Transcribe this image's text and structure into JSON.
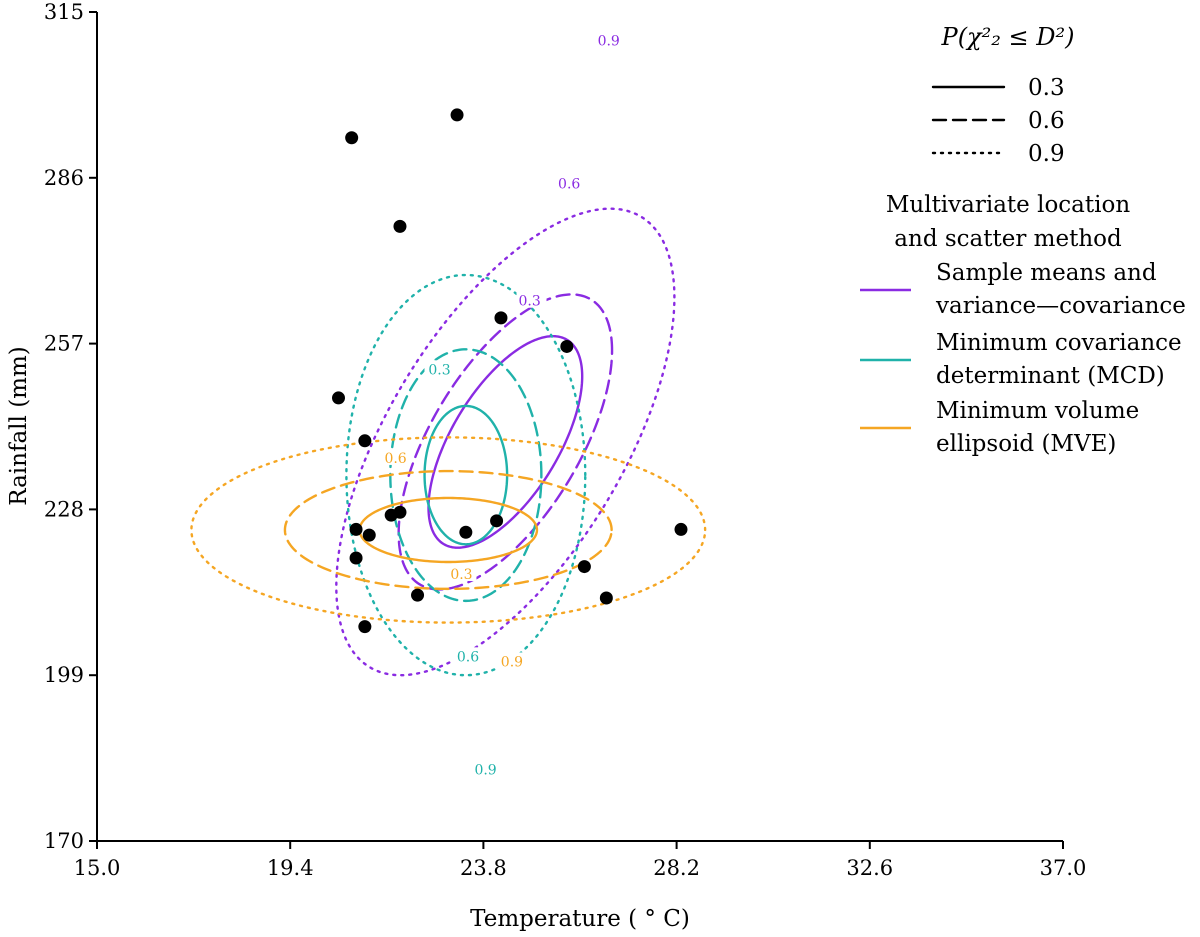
{
  "chart_data": {
    "type": "scatter",
    "xlabel": "Temperature ( ° C)",
    "ylabel": "Rainfall (mm)",
    "xlim": [
      15.0,
      37.0
    ],
    "ylim": [
      170,
      315
    ],
    "xticks": [
      15.0,
      19.4,
      23.8,
      28.2,
      32.6,
      37.0
    ],
    "xtick_labels": [
      "15.0",
      "19.4",
      "23.8",
      "28.2",
      "32.6",
      "37.0"
    ],
    "yticks": [
      170,
      199,
      228,
      257,
      286,
      315
    ],
    "ytick_labels": [
      "170",
      "199",
      "228",
      "257",
      "286",
      "315"
    ],
    "grid": false,
    "points": [
      {
        "x": 20.8,
        "y": 293.0
      },
      {
        "x": 23.2,
        "y": 297.0
      },
      {
        "x": 21.9,
        "y": 277.5
      },
      {
        "x": 24.2,
        "y": 261.5
      },
      {
        "x": 25.7,
        "y": 256.5
      },
      {
        "x": 20.5,
        "y": 247.5
      },
      {
        "x": 21.1,
        "y": 240.0
      },
      {
        "x": 21.7,
        "y": 227.0
      },
      {
        "x": 21.9,
        "y": 227.5
      },
      {
        "x": 24.1,
        "y": 226.0
      },
      {
        "x": 23.4,
        "y": 224.0
      },
      {
        "x": 20.9,
        "y": 224.5
      },
      {
        "x": 21.2,
        "y": 223.5
      },
      {
        "x": 28.3,
        "y": 224.5
      },
      {
        "x": 20.9,
        "y": 219.5
      },
      {
        "x": 26.1,
        "y": 218.0
      },
      {
        "x": 22.3,
        "y": 213.0
      },
      {
        "x": 26.6,
        "y": 212.5
      },
      {
        "x": 21.1,
        "y": 207.5
      }
    ],
    "methods": [
      {
        "name": "Sample means and variance—covariance",
        "color": "#8a2be2",
        "contours": [
          {
            "level": "0.3",
            "center": [
              24.3,
              239.8
            ],
            "sx": 1.75,
            "sy": 18.5,
            "rho": 0.62,
            "label_at": [
              24.6,
              264.5
            ],
            "label_anchor": "start"
          },
          {
            "level": "0.6",
            "center": [
              24.3,
              239.8
            ],
            "sx": 2.43,
            "sy": 25.8,
            "rho": 0.62,
            "label_at": [
              25.5,
              285.0
            ],
            "label_anchor": "start"
          },
          {
            "level": "0.9",
            "center": [
              24.3,
              239.8
            ],
            "sx": 3.85,
            "sy": 40.8,
            "rho": 0.62,
            "label_at": [
              26.4,
              310.0
            ],
            "label_anchor": "start"
          }
        ]
      },
      {
        "name": "Minimum covariance determinant (MCD)",
        "color": "#20b2aa",
        "contours": [
          {
            "level": "0.3",
            "center": [
              23.4,
              234.0
            ],
            "sx": 0.94,
            "sy": 12.1,
            "rho": 0.0,
            "label_at": [
              22.8,
              252.5
            ],
            "label_anchor": "middle"
          },
          {
            "level": "0.6",
            "center": [
              23.4,
              234.0
            ],
            "sx": 1.72,
            "sy": 22.0,
            "rho": 0.0,
            "label_at": [
              23.45,
              202.3
            ],
            "label_anchor": "middle"
          },
          {
            "level": "0.9",
            "center": [
              23.4,
              234.0
            ],
            "sx": 2.72,
            "sy": 35.0,
            "rho": 0.0,
            "label_at": [
              23.85,
              182.5
            ],
            "label_anchor": "middle"
          }
        ]
      },
      {
        "name": "Minimum volume ellipsoid (MVE)",
        "color": "#f5a623",
        "contours": [
          {
            "level": "0.3",
            "center": [
              23.0,
              224.4
            ],
            "sx": 2.02,
            "sy": 5.6,
            "rho": 0.0,
            "label_at": [
              23.3,
              216.7
            ],
            "label_anchor": "middle"
          },
          {
            "level": "0.6",
            "center": [
              23.0,
              224.4
            ],
            "sx": 3.72,
            "sy": 10.3,
            "rho": 0.0,
            "label_at": [
              21.8,
              237.0
            ],
            "label_anchor": "middle"
          },
          {
            "level": "0.9",
            "center": [
              23.0,
              224.4
            ],
            "sx": 5.85,
            "sy": 16.2,
            "rho": 0.0,
            "label_at": [
              24.45,
              201.4
            ],
            "label_anchor": "middle"
          }
        ]
      }
    ],
    "legend": {
      "placement": "top-right",
      "level_title": "P(χ²₂ ≤ D²)",
      "levels": [
        {
          "label": "0.3",
          "style": "solid"
        },
        {
          "label": "0.6",
          "style": "dashed"
        },
        {
          "label": "0.9",
          "style": "dotted"
        }
      ],
      "method_title_lines": [
        "Multivariate location",
        "and scatter method"
      ],
      "methods": [
        {
          "lines": [
            "Sample means and",
            "variance—covariance"
          ],
          "color": "#8a2be2"
        },
        {
          "lines": [
            "Minimum covariance",
            "determinant (MCD)"
          ],
          "color": "#20b2aa"
        },
        {
          "lines": [
            "Minimum volume",
            "ellipsoid (MVE)"
          ],
          "color": "#f5a623"
        }
      ]
    }
  }
}
